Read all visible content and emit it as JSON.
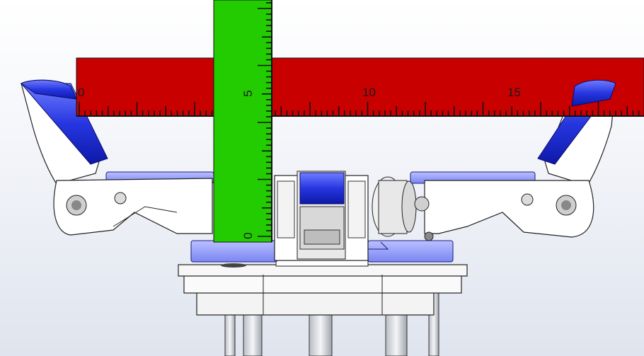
{
  "colors": {
    "background": "#eef1f7",
    "horizontal_ruler": "#c90000",
    "vertical_ruler": "#22cc00",
    "tick": "#111111",
    "transparent_part": "#2b3fd6",
    "metal": "#f7f7f7",
    "outline": "#222222"
  },
  "horizontal_ruler": {
    "labels": [
      "0",
      "10",
      "15"
    ]
  },
  "vertical_ruler": {
    "labels": [
      "5",
      "0"
    ]
  },
  "icons": [
    "cad-viewport",
    "gripper-assembly"
  ]
}
